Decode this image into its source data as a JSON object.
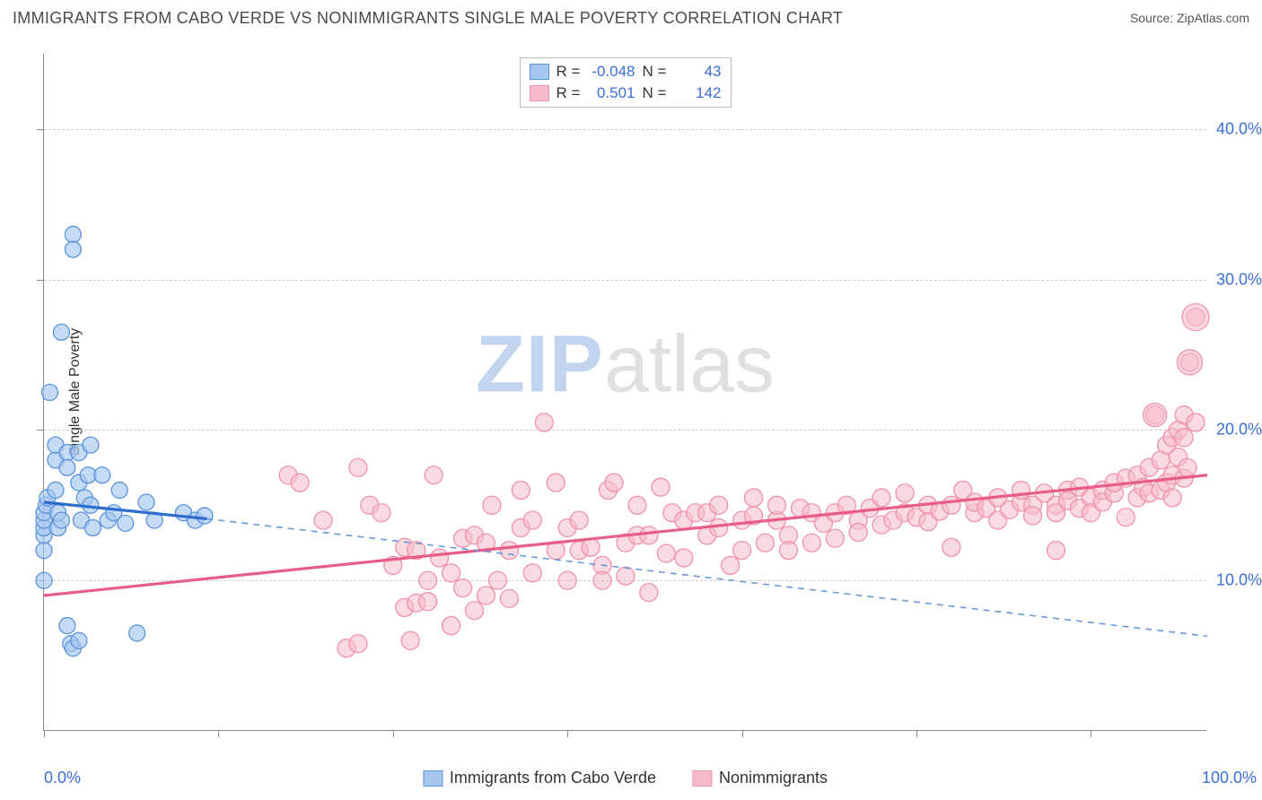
{
  "title": "IMMIGRANTS FROM CABO VERDE VS NONIMMIGRANTS SINGLE MALE POVERTY CORRELATION CHART",
  "source": "Source: ZipAtlas.com",
  "ylabel": "Single Male Poverty",
  "watermark": {
    "zip": "ZIP",
    "atlas": "atlas"
  },
  "chart": {
    "type": "scatter",
    "xlim": [
      0,
      100
    ],
    "ylim": [
      0,
      45
    ],
    "xlim_labels": {
      "left": "0.0%",
      "right": "100.0%"
    },
    "yticks": [
      10,
      20,
      30,
      40
    ],
    "ytick_labels": [
      "10.0%",
      "20.0%",
      "30.0%",
      "40.0%"
    ],
    "xtick_positions": [
      0,
      15,
      30,
      45,
      60,
      75,
      90
    ],
    "background_color": "#ffffff",
    "grid_color": "#cccccc",
    "axis_color": "#888888",
    "label_color": "#3b6fd6"
  },
  "series": {
    "blue": {
      "label": "Immigrants from Cabo Verde",
      "R": "-0.048",
      "N": "43",
      "point_fill": "#a6c6ee",
      "point_stroke": "#5a94dd",
      "point_opacity": 0.65,
      "line_color": "#2d6dd0",
      "line_dash_color": "#6a97d9",
      "radius": 9,
      "trend_solid": {
        "x1": 0,
        "y1": 15.2,
        "x2": 14,
        "y2": 14.1
      },
      "trend_dash": {
        "x1": 14,
        "y1": 14.1,
        "x2": 100,
        "y2": 6.3
      },
      "points": [
        [
          0,
          10
        ],
        [
          0,
          12
        ],
        [
          0,
          13
        ],
        [
          0,
          13.5
        ],
        [
          0,
          14
        ],
        [
          0,
          14.5
        ],
        [
          0.2,
          15
        ],
        [
          0.3,
          15.5
        ],
        [
          0.5,
          22.5
        ],
        [
          1,
          16
        ],
        [
          1,
          18
        ],
        [
          1,
          19
        ],
        [
          1.2,
          13.5
        ],
        [
          1.2,
          14.5
        ],
        [
          1.5,
          14
        ],
        [
          1.5,
          26.5
        ],
        [
          2,
          7
        ],
        [
          2,
          18.5
        ],
        [
          2,
          17.5
        ],
        [
          2.3,
          5.8
        ],
        [
          2.5,
          33
        ],
        [
          2.5,
          32
        ],
        [
          2.5,
          5.5
        ],
        [
          3,
          6
        ],
        [
          3,
          16.5
        ],
        [
          3,
          18.5
        ],
        [
          3.2,
          14
        ],
        [
          3.5,
          15.5
        ],
        [
          3.8,
          17
        ],
        [
          4,
          19
        ],
        [
          4,
          15
        ],
        [
          4.2,
          13.5
        ],
        [
          5,
          17
        ],
        [
          5.5,
          14
        ],
        [
          6,
          14.5
        ],
        [
          6.5,
          16
        ],
        [
          7,
          13.8
        ],
        [
          8,
          6.5
        ],
        [
          8.8,
          15.2
        ],
        [
          9.5,
          14
        ],
        [
          12,
          14.5
        ],
        [
          13,
          14
        ],
        [
          13.8,
          14.3
        ]
      ]
    },
    "pink": {
      "label": "Nonimmigrants",
      "R": "0.501",
      "N": "142",
      "point_fill": "#f6bccb",
      "point_stroke": "#ef91ac",
      "point_opacity": 0.55,
      "line_color": "#e85c87",
      "radius": 10,
      "trend": {
        "x1": 0,
        "y1": 9.0,
        "x2": 100,
        "y2": 17.0
      },
      "points": [
        [
          21,
          17
        ],
        [
          22,
          16.5
        ],
        [
          24,
          14
        ],
        [
          26,
          5.5
        ],
        [
          27,
          17.5
        ],
        [
          27,
          5.8
        ],
        [
          28,
          15
        ],
        [
          29,
          14.5
        ],
        [
          30,
          11
        ],
        [
          31,
          8.2
        ],
        [
          31,
          12.2
        ],
        [
          31.5,
          6
        ],
        [
          32,
          8.5
        ],
        [
          32,
          12
        ],
        [
          33,
          10
        ],
        [
          33,
          8.6
        ],
        [
          33.5,
          17
        ],
        [
          34,
          11.5
        ],
        [
          35,
          7
        ],
        [
          35,
          10.5
        ],
        [
          36,
          9.5
        ],
        [
          36,
          12.8
        ],
        [
          37,
          8
        ],
        [
          37,
          13
        ],
        [
          38,
          12.5
        ],
        [
          38,
          9
        ],
        [
          38.5,
          15
        ],
        [
          39,
          10
        ],
        [
          40,
          12
        ],
        [
          40,
          8.8
        ],
        [
          41,
          16
        ],
        [
          41,
          13.5
        ],
        [
          42,
          14
        ],
        [
          42,
          10.5
        ],
        [
          43,
          20.5
        ],
        [
          44,
          12
        ],
        [
          44,
          16.5
        ],
        [
          45,
          13.5
        ],
        [
          45,
          10
        ],
        [
          46,
          14
        ],
        [
          46,
          12
        ],
        [
          47,
          12.2
        ],
        [
          48,
          11
        ],
        [
          48,
          10
        ],
        [
          48.5,
          16
        ],
        [
          49,
          16.5
        ],
        [
          50,
          12.5
        ],
        [
          50,
          10.3
        ],
        [
          51,
          13
        ],
        [
          51,
          15
        ],
        [
          52,
          13
        ],
        [
          52,
          9.2
        ],
        [
          53,
          16.2
        ],
        [
          53.5,
          11.8
        ],
        [
          54,
          14.5
        ],
        [
          55,
          14
        ],
        [
          55,
          11.5
        ],
        [
          56,
          14.5
        ],
        [
          57,
          13
        ],
        [
          57,
          14.5
        ],
        [
          58,
          15
        ],
        [
          58,
          13.5
        ],
        [
          59,
          11
        ],
        [
          60,
          14
        ],
        [
          60,
          12
        ],
        [
          61,
          14.3
        ],
        [
          61,
          15.5
        ],
        [
          62,
          12.5
        ],
        [
          63,
          14
        ],
        [
          63,
          15
        ],
        [
          64,
          13
        ],
        [
          64,
          12
        ],
        [
          65,
          14.8
        ],
        [
          66,
          14.5
        ],
        [
          66,
          12.5
        ],
        [
          67,
          13.8
        ],
        [
          68,
          14.5
        ],
        [
          68,
          12.8
        ],
        [
          69,
          15
        ],
        [
          70,
          14
        ],
        [
          70,
          13.2
        ],
        [
          71,
          14.8
        ],
        [
          72,
          13.7
        ],
        [
          72,
          15.5
        ],
        [
          73,
          14
        ],
        [
          74,
          14.5
        ],
        [
          74,
          15.8
        ],
        [
          75,
          14.2
        ],
        [
          76,
          15
        ],
        [
          76,
          13.9
        ],
        [
          77,
          14.6
        ],
        [
          78,
          15
        ],
        [
          78,
          12.2
        ],
        [
          79,
          16
        ],
        [
          80,
          14.5
        ],
        [
          80,
          15.2
        ],
        [
          81,
          14.8
        ],
        [
          82,
          15.5
        ],
        [
          82,
          14
        ],
        [
          83,
          14.7
        ],
        [
          84,
          15.2
        ],
        [
          84,
          16
        ],
        [
          85,
          15
        ],
        [
          85,
          14.3
        ],
        [
          86,
          15.8
        ],
        [
          87,
          15
        ],
        [
          87,
          14.5
        ],
        [
          87,
          12
        ],
        [
          88,
          16
        ],
        [
          88,
          15.3
        ],
        [
          89,
          14.8
        ],
        [
          89,
          16.2
        ],
        [
          90,
          15.5
        ],
        [
          90,
          14.5
        ],
        [
          91,
          16
        ],
        [
          91,
          15.2
        ],
        [
          92,
          15.8
        ],
        [
          92,
          16.5
        ],
        [
          93,
          14.2
        ],
        [
          93,
          16.8
        ],
        [
          94,
          15.5
        ],
        [
          94,
          17
        ],
        [
          94.5,
          16.2
        ],
        [
          95,
          15.8
        ],
        [
          95,
          17.5
        ],
        [
          95.5,
          21
        ],
        [
          96,
          16
        ],
        [
          96,
          18
        ],
        [
          96.5,
          16.5
        ],
        [
          96.5,
          19
        ],
        [
          97,
          17
        ],
        [
          97,
          19.5
        ],
        [
          97,
          15.5
        ],
        [
          97.5,
          18.2
        ],
        [
          97.5,
          20
        ],
        [
          98,
          16.8
        ],
        [
          98,
          19.5
        ],
        [
          98,
          21
        ],
        [
          98.3,
          17.5
        ],
        [
          98.5,
          24.5
        ],
        [
          99,
          20.5
        ],
        [
          99,
          27.5
        ]
      ]
    }
  }
}
